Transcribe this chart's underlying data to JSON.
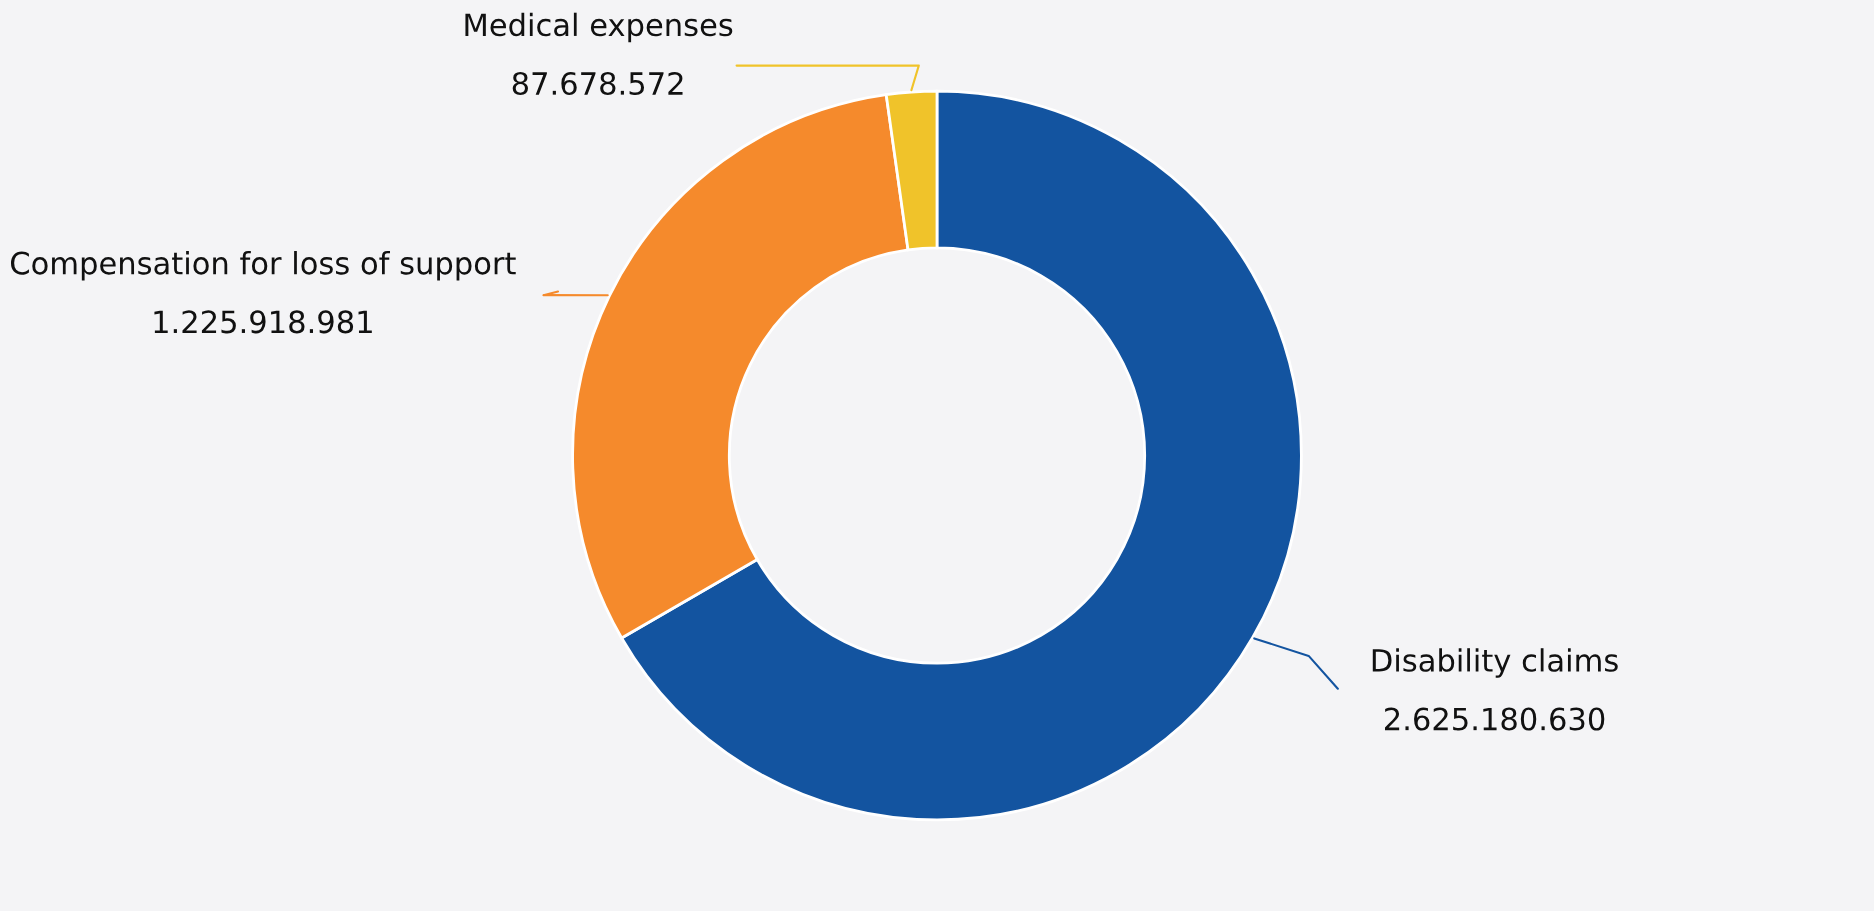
{
  "chart_data": {
    "type": "donut",
    "categories": [
      "Disability claims",
      "Compensation for loss of support",
      "Medical expenses"
    ],
    "values": [
      2625180630,
      1225918981,
      87678572
    ],
    "value_labels": [
      "2.625.180.630",
      "1.225.918.981",
      "87.678.572"
    ],
    "colors": [
      "#1354a0",
      "#f58a2c",
      "#f0c32a"
    ],
    "legend": false
  }
}
